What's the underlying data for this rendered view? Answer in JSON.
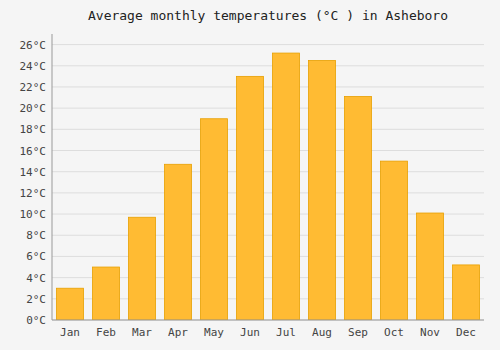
{
  "chart_data": {
    "type": "bar",
    "title": "Average monthly temperatures (°C ) in Asheboro",
    "categories": [
      "Jan",
      "Feb",
      "Mar",
      "Apr",
      "May",
      "Jun",
      "Jul",
      "Aug",
      "Sep",
      "Oct",
      "Nov",
      "Dec"
    ],
    "values": [
      3.0,
      5.0,
      9.7,
      14.7,
      19.0,
      23.0,
      25.2,
      24.5,
      21.1,
      15.0,
      10.1,
      5.2
    ],
    "color": "#FFBB33",
    "ylim": [
      0,
      27
    ],
    "yticks": [
      {
        "value": 0,
        "label": "0°C"
      },
      {
        "value": 2,
        "label": "2°C"
      },
      {
        "value": 4,
        "label": "4°C"
      },
      {
        "value": 6,
        "label": "6°C"
      },
      {
        "value": 8,
        "label": "8°C"
      },
      {
        "value": 10,
        "label": "10°C"
      },
      {
        "value": 12,
        "label": "12°C"
      },
      {
        "value": 14,
        "label": "14°C"
      },
      {
        "value": 16,
        "label": "16°C"
      },
      {
        "value": 18,
        "label": "18°C"
      },
      {
        "value": 20,
        "label": "20°C"
      },
      {
        "value": 22,
        "label": "22°C"
      },
      {
        "value": 24,
        "label": "24°C"
      },
      {
        "value": 26,
        "label": "26°C"
      }
    ],
    "grid": true
  }
}
